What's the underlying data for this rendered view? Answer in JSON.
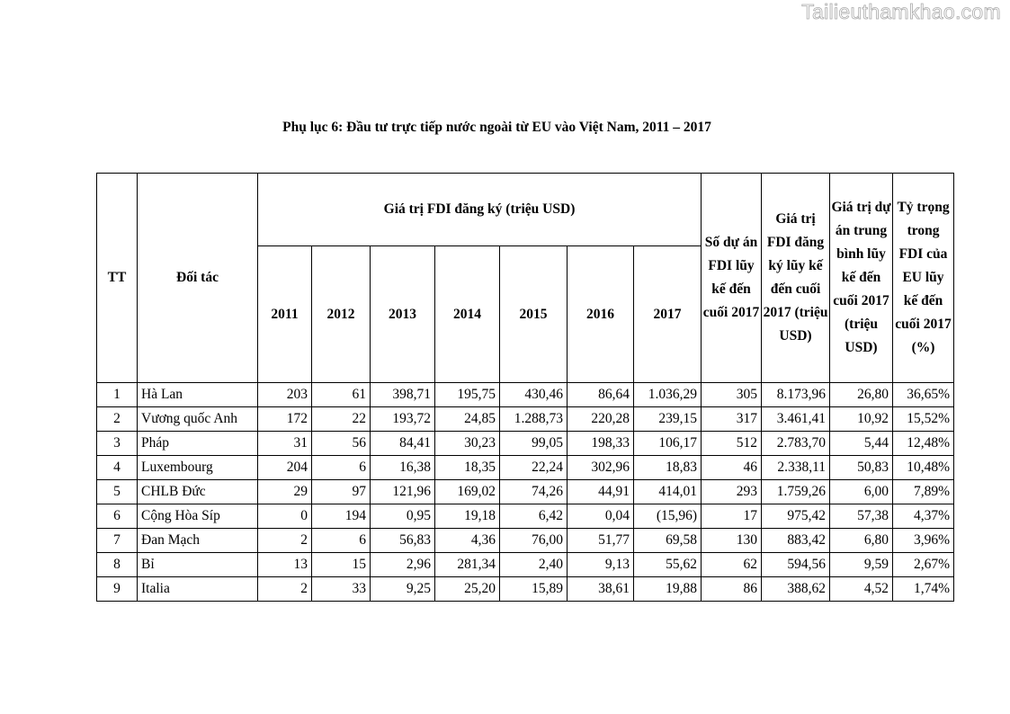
{
  "watermark": "Tailieuthamkhao.com",
  "title": "Phụ lục 6: Đầu tư trực tiếp nước ngoài từ EU vào Việt Nam, 2011 – 2017",
  "table": {
    "headers": {
      "tt": "TT",
      "partner": "Đối tác",
      "fdi_group": "Giá trị FDI đăng ký (triệu USD)",
      "years": [
        "2011",
        "2012",
        "2013",
        "2014",
        "2015",
        "2016",
        "2017"
      ],
      "projects": "Số dự án FDI lũy kế đến cuối 2017",
      "cumulative": "Giá trị FDI đăng ký lũy kế đến cuối 2017 (triệu USD)",
      "average": "Giá trị dự án trung bình lũy kế đến cuối 2017 (triệu USD)",
      "share": "Tỷ trọng trong FDI của EU lũy kế đến cuối 2017 (%)"
    },
    "rows": [
      [
        "1",
        "Hà Lan",
        "203",
        "61",
        "398,71",
        "195,75",
        "430,46",
        "86,64",
        "1.036,29",
        "305",
        "8.173,96",
        "26,80",
        "36,65%"
      ],
      [
        "2",
        "Vương quốc Anh",
        "172",
        "22",
        "193,72",
        "24,85",
        "1.288,73",
        "220,28",
        "239,15",
        "317",
        "3.461,41",
        "10,92",
        "15,52%"
      ],
      [
        "3",
        "Pháp",
        "31",
        "56",
        "84,41",
        "30,23",
        "99,05",
        "198,33",
        "106,17",
        "512",
        "2.783,70",
        "5,44",
        "12,48%"
      ],
      [
        "4",
        "Luxembourg",
        "204",
        "6",
        "16,38",
        "18,35",
        "22,24",
        "302,96",
        "18,83",
        "46",
        "2.338,11",
        "50,83",
        "10,48%"
      ],
      [
        "5",
        "CHLB Đức",
        "29",
        "97",
        "121,96",
        "169,02",
        "74,26",
        "44,91",
        "414,01",
        "293",
        "1.759,26",
        "6,00",
        "7,89%"
      ],
      [
        "6",
        "Cộng Hòa Síp",
        "0",
        "194",
        "0,95",
        "19,18",
        "6,42",
        "0,04",
        "(15,96)",
        "17",
        "975,42",
        "57,38",
        "4,37%"
      ],
      [
        "7",
        "Đan Mạch",
        "2",
        "6",
        "56,83",
        "4,36",
        "76,00",
        "51,77",
        "69,58",
        "130",
        "883,42",
        "6,80",
        "3,96%"
      ],
      [
        "8",
        "Bỉ",
        "13",
        "15",
        "2,96",
        "281,34",
        "2,40",
        "9,13",
        "55,62",
        "62",
        "594,56",
        "9,59",
        "2,67%"
      ],
      [
        "9",
        "Italia",
        "2",
        "33",
        "9,25",
        "25,20",
        "15,89",
        "38,61",
        "19,88",
        "86",
        "388,62",
        "4,52",
        "1,74%"
      ]
    ]
  }
}
